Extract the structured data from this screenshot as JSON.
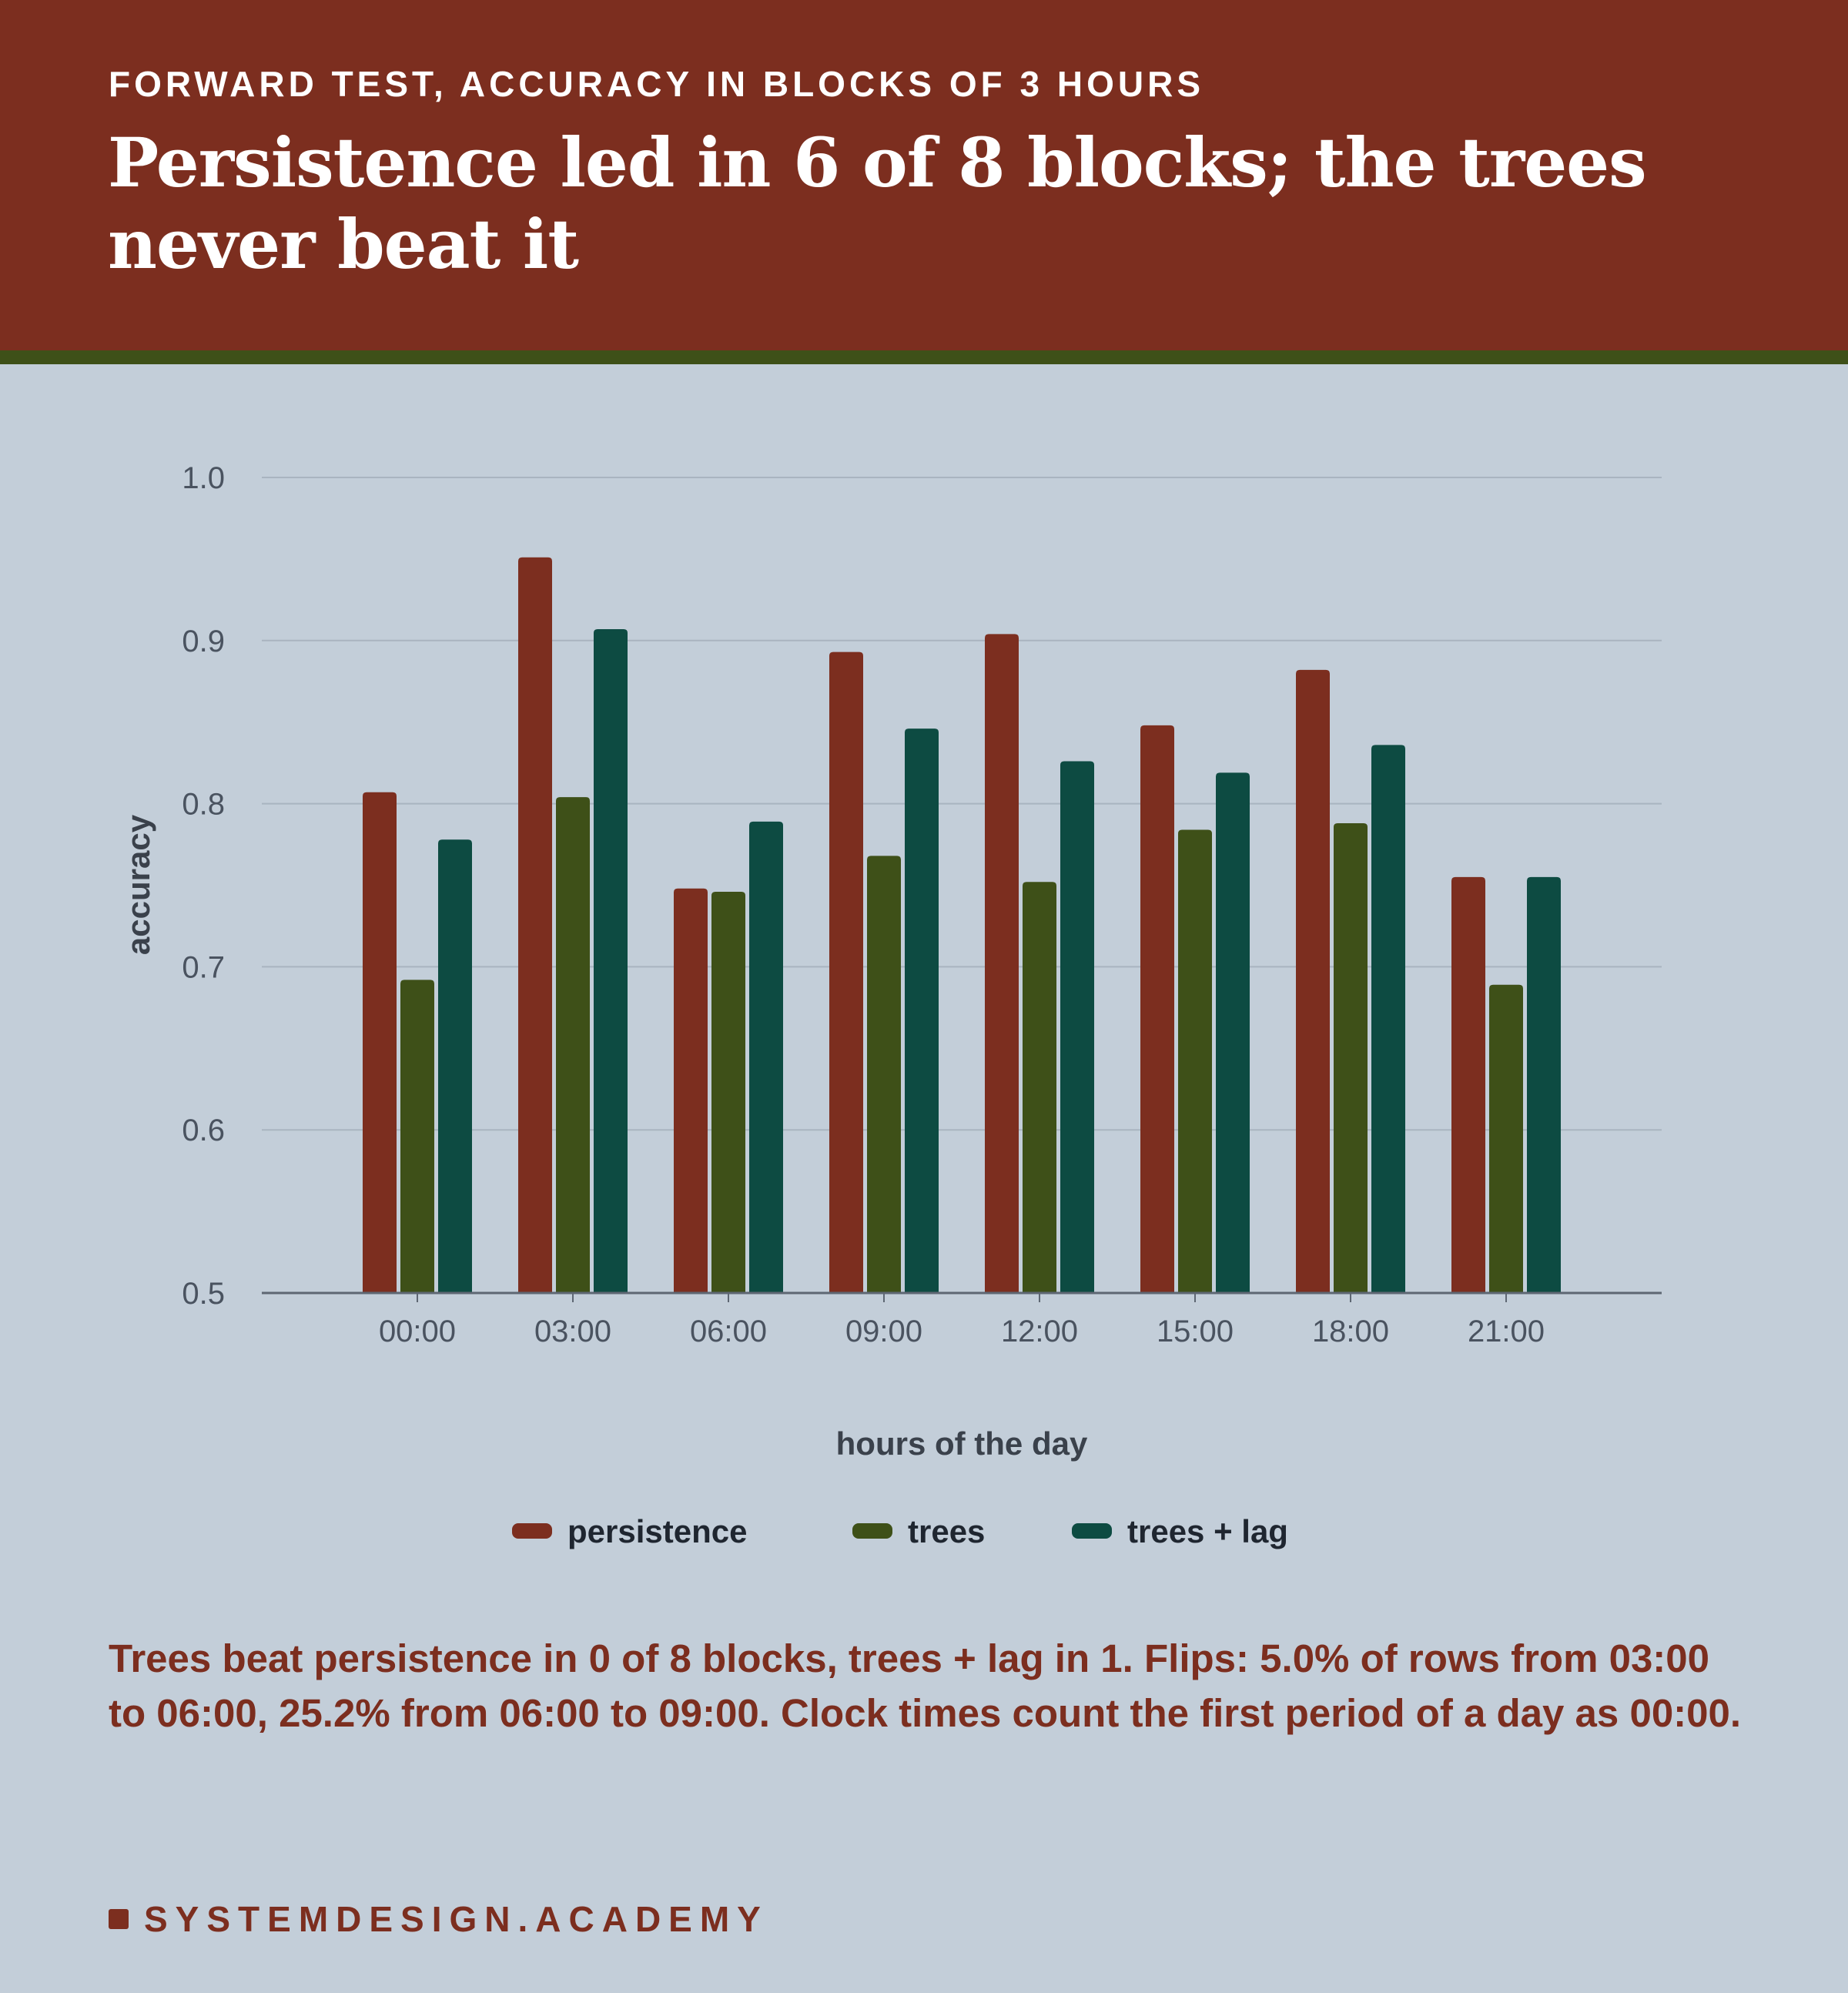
{
  "header": {
    "kicker": "FORWARD TEST, ACCURACY IN BLOCKS OF 3 HOURS",
    "headline": "Persistence led in 6 of 8 blocks; the trees never beat it"
  },
  "footnote": "Trees beat persistence in 0 of 8 blocks, trees + lag in 1. Flips: 5.0% of rows from 03:00 to 06:00, 25.2% from 06:00 to 09:00. Clock times count the first period of a day as 00:00.",
  "brand": {
    "text": "SYSTEMDESIGN.ACADEMY"
  },
  "colors": {
    "header_bg": "#7c2e1f",
    "stripe": "#3e5018",
    "page_bg": "#c3ced9"
  },
  "chart_data": {
    "type": "bar",
    "categories": [
      "00:00",
      "03:00",
      "06:00",
      "09:00",
      "12:00",
      "15:00",
      "18:00",
      "21:00"
    ],
    "series": [
      {
        "name": "persistence",
        "color": "#7c2e1f",
        "values": [
          0.807,
          0.951,
          0.748,
          0.893,
          0.904,
          0.848,
          0.882,
          0.755
        ]
      },
      {
        "name": "trees",
        "color": "#3e5018",
        "values": [
          0.692,
          0.804,
          0.746,
          0.768,
          0.752,
          0.784,
          0.788,
          0.689
        ]
      },
      {
        "name": "trees + lag",
        "color": "#0d4b42",
        "values": [
          0.778,
          0.907,
          0.789,
          0.846,
          0.826,
          0.819,
          0.836,
          0.755
        ]
      }
    ],
    "xlabel": "hours of the day",
    "ylabel": "accuracy",
    "ylim": [
      0.5,
      1.0
    ],
    "yticks": [
      "0.5",
      "0.6",
      "0.7",
      "0.8",
      "0.9",
      "1.0"
    ],
    "grid": true,
    "legend": "bottom-center"
  }
}
